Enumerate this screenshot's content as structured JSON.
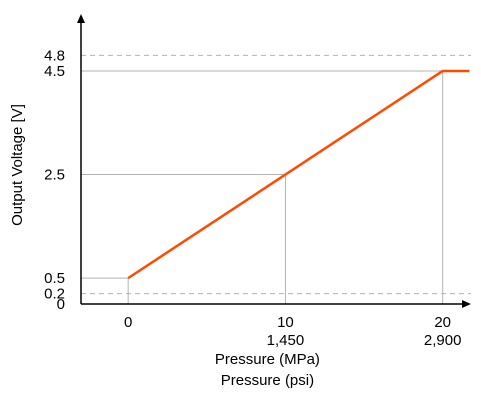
{
  "chart_data": {
    "type": "line",
    "ylabel": "Output Voltage [V]",
    "xlabel_primary": "Pressure (MPa)",
    "xlabel_secondary": "Pressure (psi)",
    "x_ticks": [
      0,
      10,
      20
    ],
    "x_tick_labels": [
      "0",
      "10",
      "20"
    ],
    "x_secondary_tick_labels": [
      "",
      "1,450",
      "2,900"
    ],
    "y_ticks": [
      0,
      0.2,
      0.5,
      2.5,
      4.5,
      4.8
    ],
    "y_tick_labels": [
      "0",
      "0.2",
      "0.5",
      "2.5",
      "4.5",
      "4.8"
    ],
    "xlim": [
      -3,
      21.8
    ],
    "ylim": [
      0,
      5.6
    ],
    "dashed_reference_lines": [
      0.2,
      4.8
    ],
    "solid_guide_points": [
      {
        "x": 0,
        "y": 0.5
      },
      {
        "x": 10,
        "y": 2.5
      },
      {
        "x": 20,
        "y": 4.5
      }
    ],
    "series": [
      {
        "points": [
          {
            "x": 0,
            "y": 0.5
          },
          {
            "x": 20,
            "y": 4.5
          },
          {
            "x": 21.7,
            "y": 4.5
          }
        ]
      }
    ],
    "colors": {
      "line": "#ff4b00",
      "guide": "#b3b3b3",
      "dashed": "#b3b3b3",
      "axis": "#000000"
    }
  }
}
